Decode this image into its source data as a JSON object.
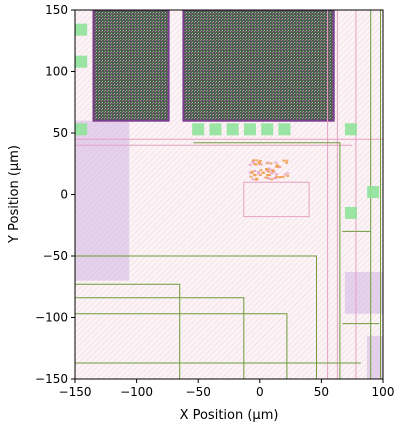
{
  "chart_data": {
    "type": "heatmap",
    "xlabel": "X Position (µm)",
    "ylabel": "Y Position (µm)",
    "xlim": [
      -150,
      100
    ],
    "ylim": [
      -150,
      150
    ],
    "xticks": [
      -150,
      -100,
      -50,
      0,
      50,
      100
    ],
    "yticks": [
      -150,
      -100,
      -50,
      0,
      50,
      100,
      150
    ],
    "grid": false,
    "colors": {
      "background": "#fbf3f5",
      "macro_fill": "#4d5e4e",
      "macro_edge": "#7a3e8c",
      "pad_green": "#8fe39a",
      "route_green": "#6f9b3a",
      "route_pink": "#e6a2c3",
      "cell_orange": "#f0a050",
      "violet_block": "#c9a8df"
    },
    "macros": [
      {
        "name": "macro-left",
        "x0": -135,
        "x1": -74,
        "y0": 60,
        "y1": 150
      },
      {
        "name": "macro-center",
        "x0": -62,
        "x1": 60,
        "y0": 60,
        "y1": 150
      }
    ],
    "pads": [
      {
        "x": -145,
        "y": 134
      },
      {
        "x": -145,
        "y": 108
      },
      {
        "x": -145,
        "y": 53
      },
      {
        "x": -50,
        "y": 53
      },
      {
        "x": -36,
        "y": 53
      },
      {
        "x": -22,
        "y": 53
      },
      {
        "x": -8,
        "y": 53
      },
      {
        "x": 6,
        "y": 53
      },
      {
        "x": 20,
        "y": 53
      },
      {
        "x": 74,
        "y": 53
      },
      {
        "x": 92,
        "y": 2
      },
      {
        "x": 74,
        "y": -15
      }
    ],
    "cluster": {
      "x": 8,
      "y": 20,
      "spread": 16
    },
    "routes_green": [
      [
        [
          -150,
          -73
        ],
        [
          -65,
          -73
        ],
        [
          -65,
          -150
        ]
      ],
      [
        [
          -150,
          -84
        ],
        [
          -13,
          -84
        ],
        [
          -13,
          -150
        ]
      ],
      [
        [
          -150,
          -97
        ],
        [
          22,
          -97
        ],
        [
          22,
          -150
        ]
      ],
      [
        [
          -150,
          -137
        ],
        [
          82,
          -137
        ]
      ],
      [
        [
          -150,
          -50
        ],
        [
          46,
          -50
        ],
        [
          46,
          -150
        ]
      ],
      [
        [
          -54,
          42
        ],
        [
          65,
          42
        ],
        [
          65,
          -150
        ]
      ],
      [
        [
          67,
          -30
        ],
        [
          90,
          -30
        ]
      ],
      [
        [
          67,
          -105
        ],
        [
          97,
          -105
        ]
      ],
      [
        [
          90,
          150
        ],
        [
          90,
          -150
        ]
      ],
      [
        [
          98,
          150
        ],
        [
          98,
          -150
        ]
      ]
    ],
    "routes_pink": [
      [
        [
          -13,
          10
        ],
        [
          40,
          10
        ],
        [
          40,
          -18
        ],
        [
          -13,
          -18
        ],
        [
          -13,
          10
        ]
      ],
      [
        [
          -150,
          45
        ],
        [
          100,
          45
        ]
      ],
      [
        [
          -150,
          40
        ],
        [
          75,
          40
        ]
      ],
      [
        [
          55,
          150
        ],
        [
          55,
          -150
        ]
      ],
      [
        [
          63,
          150
        ],
        [
          63,
          -150
        ]
      ],
      [
        [
          78,
          150
        ],
        [
          78,
          -150
        ]
      ]
    ],
    "violet_blocks": [
      {
        "x0": -150,
        "x1": -106,
        "y0": 60,
        "y1": -70
      },
      {
        "x0": 69,
        "x1": 100,
        "y0": -63,
        "y1": -97
      },
      {
        "x0": 87,
        "x1": 100,
        "y0": -115,
        "y1": -150
      }
    ]
  }
}
